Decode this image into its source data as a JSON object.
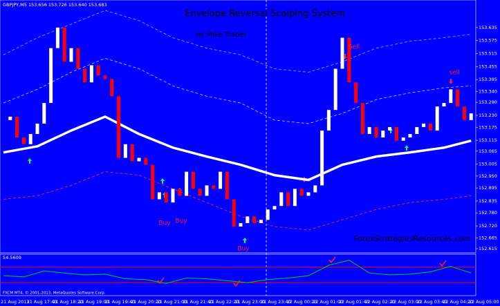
{
  "header": "GBPJPY,M5  153.656 153.726 153.640 153.683",
  "chart_data": [
    {
      "type": "candlestick",
      "title": "Envelope Reversal Scalping System",
      "subtitle": "by Mike Trader",
      "watermark": "ForexStrategiesResources.com",
      "up_color": "#ffffff",
      "down_color": "#ff0000",
      "prices": [
        153.208,
        153.224,
        153.128,
        153.097,
        153.144,
        153.192,
        153.287,
        153.54,
        153.635,
        153.477,
        153.54,
        153.445,
        153.382,
        153.461,
        153.414,
        153.398,
        153.318,
        153.034,
        153.097,
        153.018,
        153.034,
        153.002,
        152.843,
        152.875,
        152.828,
        152.891,
        152.859,
        152.97,
        152.891,
        152.859,
        152.907,
        152.891,
        152.97,
        152.843,
        152.717,
        152.733,
        152.764,
        152.733,
        152.748,
        152.796,
        152.812,
        152.875,
        152.812,
        152.891,
        152.859,
        152.875,
        152.907,
        153.16,
        153.255,
        153.445,
        153.588,
        153.382,
        153.287,
        153.144,
        153.176,
        153.128,
        153.16,
        153.176,
        153.113,
        153.128,
        153.144,
        153.176,
        153.192,
        153.16,
        153.271,
        153.287,
        153.35,
        153.271,
        153.208,
        153.239
      ],
      "overlays": [
        {
          "color": "#ffffff",
          "style": "solid",
          "x": [
            0,
            5,
            10,
            15,
            20,
            25,
            30,
            35,
            40,
            45,
            50,
            55,
            60,
            65,
            69
          ],
          "values": [
            153.059,
            153.087,
            153.16,
            153.224,
            153.144,
            153.081,
            153.04,
            153.002,
            152.954,
            152.932,
            153.002,
            153.04,
            153.059,
            153.081,
            153.113
          ]
        },
        {
          "color": "#c8c8ff",
          "style": "dashed",
          "x": [
            0,
            5,
            10,
            15,
            20,
            25,
            30,
            35,
            40,
            45,
            50,
            55,
            60,
            65,
            69
          ],
          "values": [
            153.287,
            153.35,
            153.429,
            153.493,
            153.445,
            153.366,
            153.318,
            153.287,
            153.208,
            153.192,
            153.239,
            153.303,
            153.334,
            153.357,
            153.366
          ]
        },
        {
          "color": "#a0a0ff",
          "style": "dashed",
          "x": [
            0,
            5,
            10,
            15,
            20,
            25,
            30,
            35,
            40,
            45,
            50,
            55,
            60,
            65,
            69
          ],
          "values": [
            153.509,
            153.588,
            153.651,
            153.714,
            153.667,
            153.588,
            153.54,
            153.509,
            153.445,
            153.429,
            153.477,
            153.54,
            153.572,
            153.588,
            153.604
          ]
        },
        {
          "color": "#ff3030",
          "style": "dashed",
          "x": [
            0,
            5,
            10,
            15,
            20,
            25,
            30,
            35,
            40,
            45,
            50,
            55,
            60,
            65,
            69
          ],
          "values": [
            152.843,
            152.859,
            152.907,
            152.97,
            152.954,
            152.891,
            152.828,
            152.764,
            152.717,
            152.701,
            152.748,
            152.796,
            152.828,
            152.843,
            152.859
          ]
        }
      ],
      "annotations": [
        "Sell",
        "sell",
        "Buy",
        "Buy",
        "Buy"
      ],
      "ylim": [
        152.596,
        153.762
      ],
      "yticks": [
        153.635,
        153.575,
        153.515,
        153.455,
        153.395,
        {
          "value": 153.34,
          "label": "153.340"
        },
        {
          "value": 153.29,
          "label": "153.290"
        },
        {
          "value": 153.23,
          "label": "153.230"
        },
        153.175,
        153.115,
        153.065,
        153.005,
        {
          "value": 152.95,
          "label": "152.950"
        },
        152.895,
        152.835,
        {
          "value": 152.78,
          "label": "152.780"
        },
        {
          "value": 152.72,
          "label": "152.720"
        },
        152.665,
        152.615
      ],
      "categories": [
        "21 Aug 2013",
        "21 Aug 17:40",
        "21 Aug 18:20",
        "21 Aug 19:00",
        "21 Aug 19:40",
        "21 Aug 20:20",
        "21 Aug 21:00",
        "21 Aug 21:40",
        "21 Aug 22:20",
        "21 Aug 23:00",
        "21 Aug 23:40",
        "22 Aug 00:20",
        "22 Aug 01:00",
        "22 Aug 01:40",
        "22 Aug 02:20",
        "22 Aug 03:00",
        "22 Aug 03:40",
        "22 Aug 04:20",
        "22 Aug 05:00"
      ]
    },
    {
      "type": "line",
      "label": "54.5609",
      "footer": "FXCM MT4, © 2001-2013, MetaQuotes Software Corp.",
      "color": "#00d000",
      "level_color": "#ff0000",
      "levels": [
        70,
        30
      ],
      "ylim": [
        0,
        100
      ],
      "x": [
        0,
        3,
        6,
        9,
        12,
        15,
        18,
        21,
        24,
        27,
        30,
        33,
        36,
        39,
        42,
        45,
        48,
        51,
        54,
        57,
        60,
        63,
        66,
        69
      ],
      "values": [
        48,
        45,
        60,
        55,
        50,
        52,
        40,
        38,
        28,
        42,
        40,
        35,
        30,
        38,
        42,
        48,
        75,
        88,
        55,
        50,
        52,
        58,
        72,
        55
      ]
    }
  ]
}
